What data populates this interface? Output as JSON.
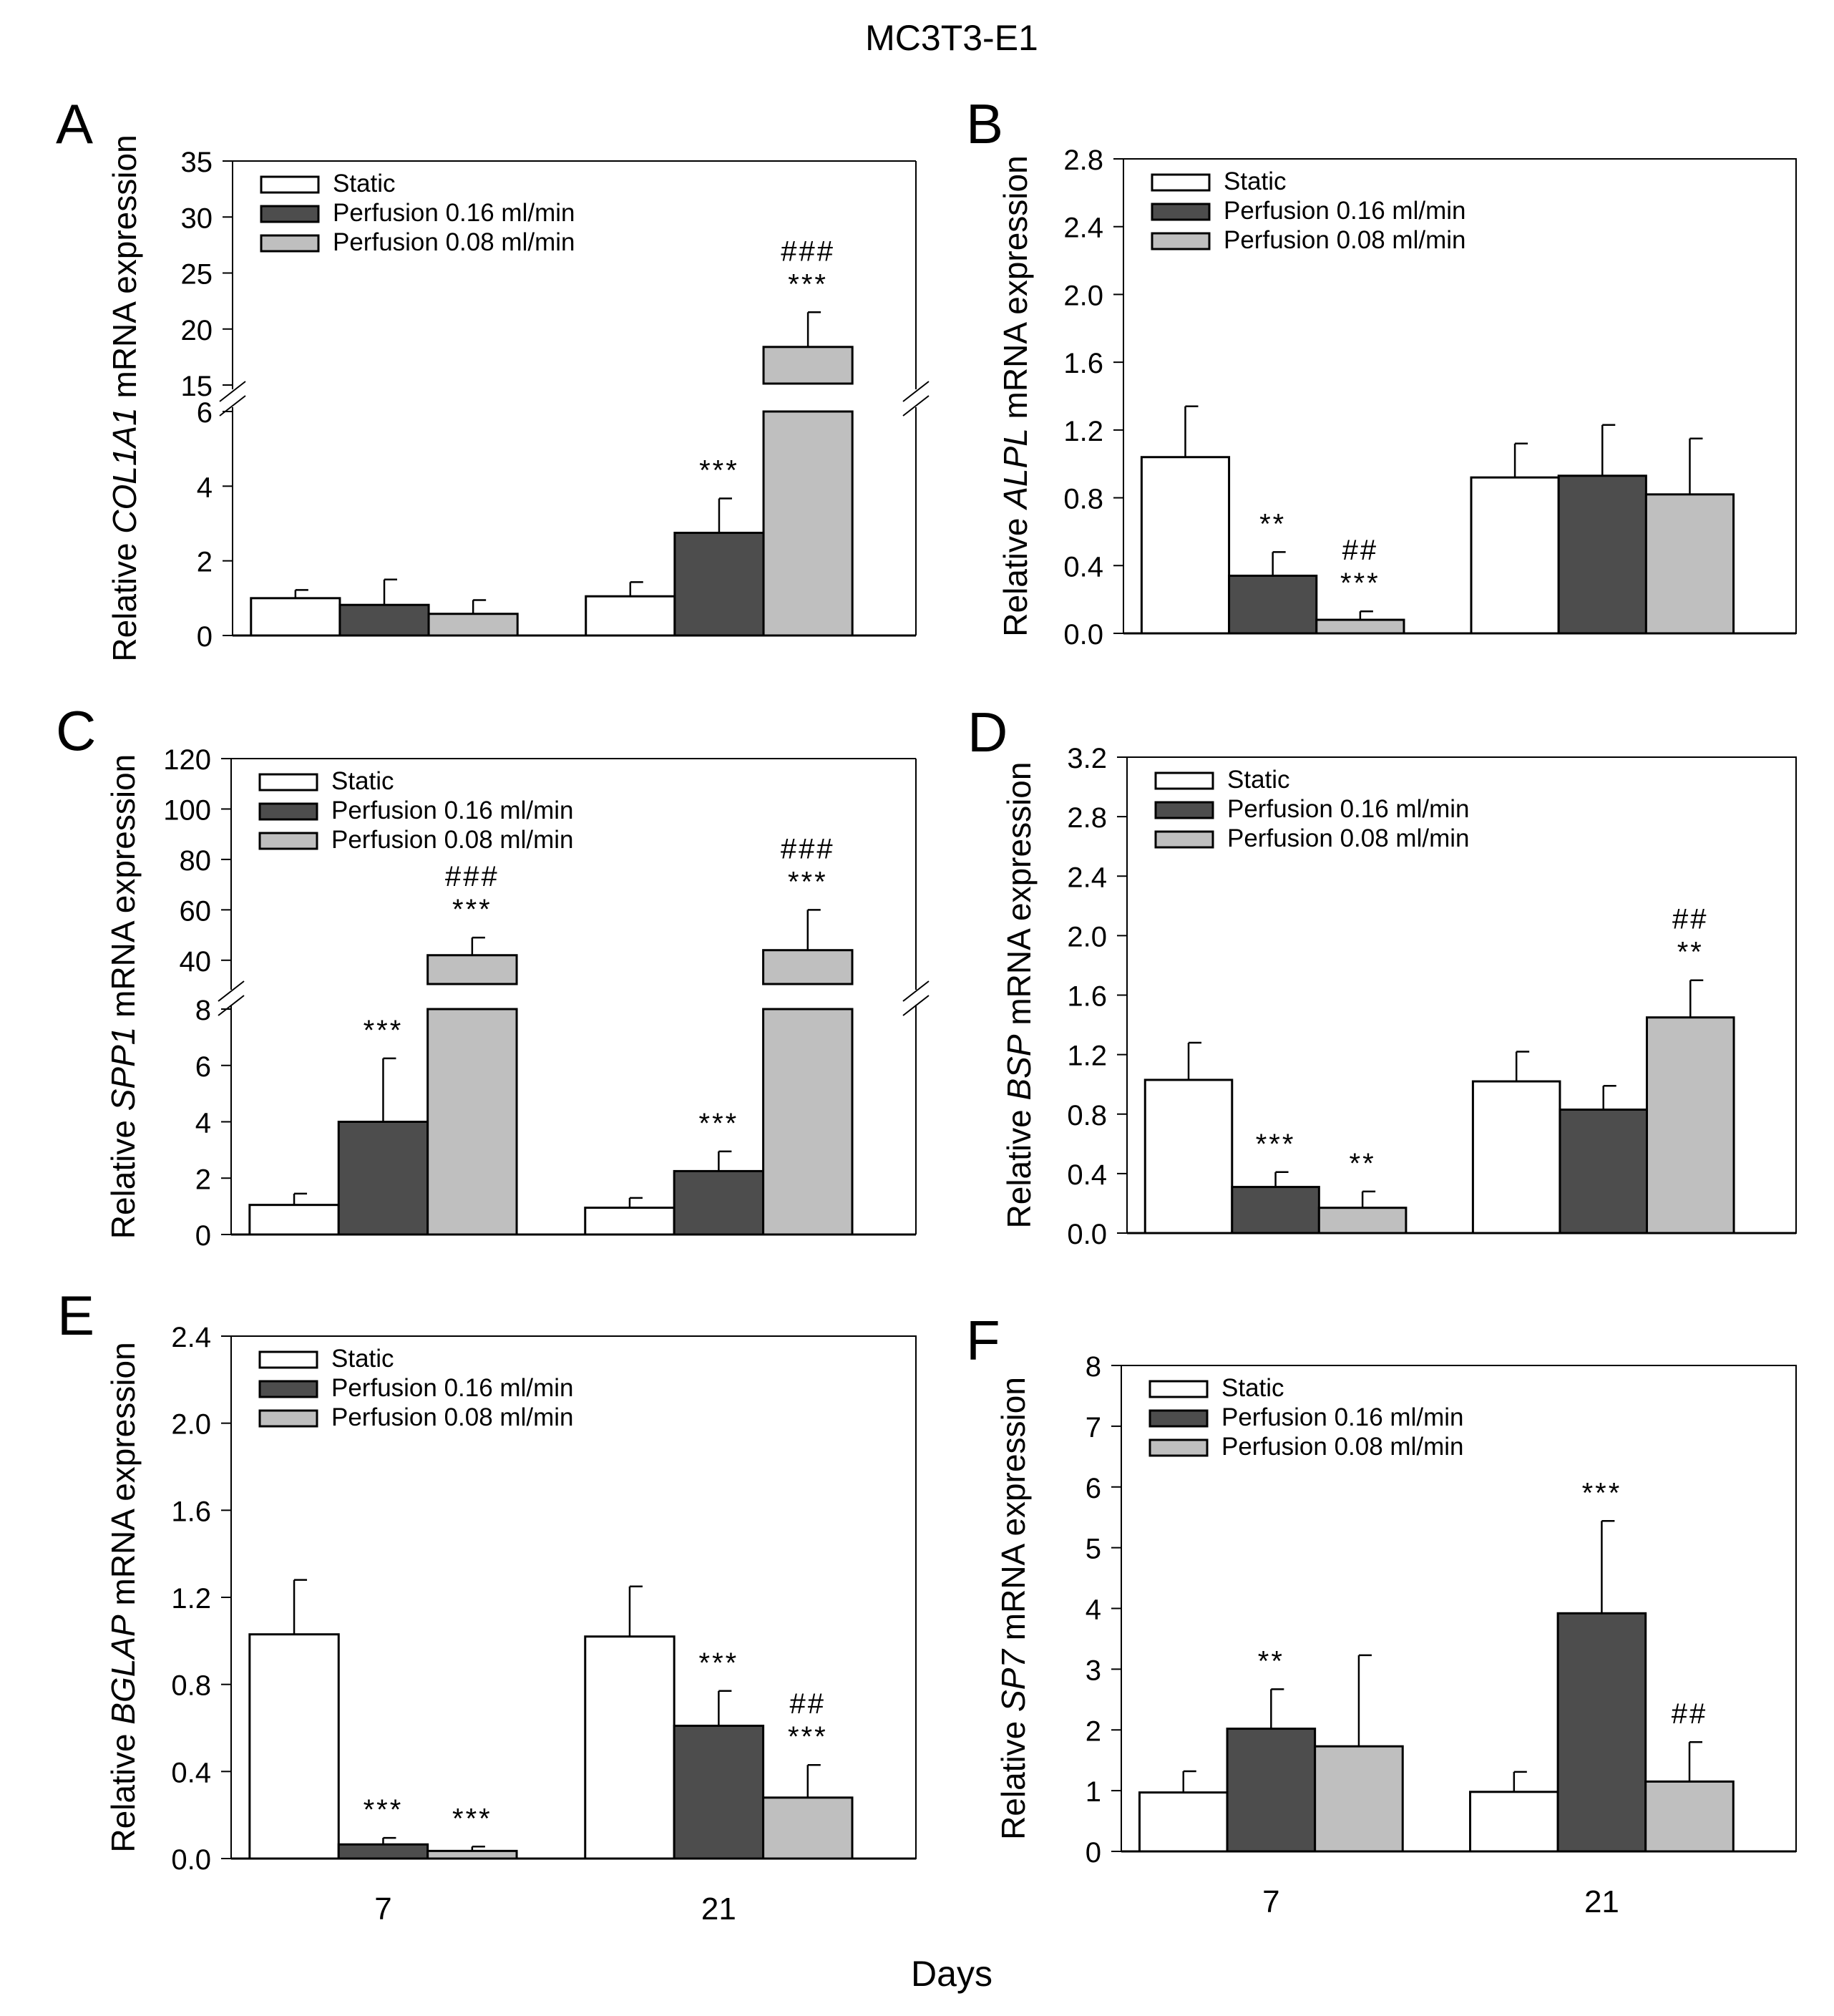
{
  "figure_title": "MC3T3-E1",
  "shared_xlabel": "Days",
  "legend": [
    "Static",
    "Perfusion 0.16 ml/min",
    "Perfusion 0.08 ml/min"
  ],
  "colors": {
    "static": "#ffffff",
    "perf016": "#4d4d4d",
    "perf008": "#bfbfbf",
    "axis": "#000000"
  },
  "chart_data": [
    {
      "panel": "A",
      "type": "bar",
      "gene": "COL1A1",
      "ylabel_prefix": "Relative ",
      "ylabel_suffix": " mRNA expression",
      "categories": [
        "7",
        "21"
      ],
      "show_xticks": false,
      "broken_axis": true,
      "lower": {
        "ylim": [
          0,
          6
        ],
        "ticks": [
          0,
          2,
          4,
          6
        ]
      },
      "upper": {
        "ylim": [
          15,
          35
        ],
        "ticks": [
          15,
          20,
          25,
          30,
          35
        ]
      },
      "series": [
        {
          "name": "Static",
          "values": [
            1.0,
            1.05
          ],
          "errors": [
            0.22,
            0.38
          ]
        },
        {
          "name": "Perfusion 0.16 ml/min",
          "values": [
            0.82,
            2.75
          ],
          "errors": [
            0.68,
            0.92
          ]
        },
        {
          "name": "Perfusion 0.08 ml/min",
          "values": [
            0.58,
            18.4
          ],
          "errors": [
            0.37,
            3.1
          ]
        }
      ],
      "annotations": [
        {
          "category": 1,
          "series": 1,
          "lines": [
            "***"
          ]
        },
        {
          "category": 1,
          "series": 2,
          "lines": [
            "###",
            "***"
          ]
        }
      ]
    },
    {
      "panel": "B",
      "type": "bar",
      "gene": "ALPL",
      "ylabel_prefix": "Relative ",
      "ylabel_suffix": " mRNA expression",
      "categories": [
        "7",
        "21"
      ],
      "show_xticks": false,
      "ylim": [
        0,
        2.8
      ],
      "ticks": [
        "0.0",
        "0.4",
        "0.8",
        "1.2",
        "1.6",
        "2.0",
        "2.4",
        "2.8"
      ],
      "series": [
        {
          "name": "Static",
          "values": [
            1.04,
            0.92
          ],
          "errors": [
            0.3,
            0.2
          ]
        },
        {
          "name": "Perfusion 0.16 ml/min",
          "values": [
            0.34,
            0.93
          ],
          "errors": [
            0.14,
            0.3
          ]
        },
        {
          "name": "Perfusion 0.08 ml/min",
          "values": [
            0.08,
            0.82
          ],
          "errors": [
            0.05,
            0.33
          ]
        }
      ],
      "annotations": [
        {
          "category": 0,
          "series": 1,
          "lines": [
            "**"
          ]
        },
        {
          "category": 0,
          "series": 2,
          "lines": [
            "##",
            "***"
          ]
        }
      ]
    },
    {
      "panel": "C",
      "type": "bar",
      "gene": "SPP1",
      "ylabel_prefix": "Relative ",
      "ylabel_suffix": " mRNA expression",
      "categories": [
        "7",
        "21"
      ],
      "show_xticks": false,
      "broken_axis": true,
      "lower": {
        "ylim": [
          0,
          8
        ],
        "ticks": [
          0,
          2,
          4,
          6,
          8
        ]
      },
      "upper": {
        "ylim": [
          30,
          120
        ],
        "ticks": [
          40,
          60,
          80,
          100,
          120
        ]
      },
      "series": [
        {
          "name": "Static",
          "values": [
            1.05,
            0.95
          ],
          "errors": [
            0.4,
            0.35
          ]
        },
        {
          "name": "Perfusion 0.16 ml/min",
          "values": [
            4.0,
            2.25
          ],
          "errors": [
            2.25,
            0.7
          ]
        },
        {
          "name": "Perfusion 0.08 ml/min",
          "values": [
            42,
            44
          ],
          "errors": [
            7,
            16
          ]
        }
      ],
      "annotations": [
        {
          "category": 0,
          "series": 1,
          "lines": [
            "***"
          ]
        },
        {
          "category": 0,
          "series": 2,
          "lines": [
            "###",
            "***"
          ]
        },
        {
          "category": 1,
          "series": 1,
          "lines": [
            "***"
          ]
        },
        {
          "category": 1,
          "series": 2,
          "lines": [
            "###",
            "***"
          ]
        }
      ]
    },
    {
      "panel": "D",
      "type": "bar",
      "gene": "BSP",
      "ylabel_prefix": "Relative ",
      "ylabel_suffix": " mRNA expression",
      "categories": [
        "7",
        "21"
      ],
      "show_xticks": false,
      "ylim": [
        0,
        3.2
      ],
      "ticks": [
        "0.0",
        "0.4",
        "0.8",
        "1.2",
        "1.6",
        "2.0",
        "2.4",
        "2.8",
        "3.2"
      ],
      "series": [
        {
          "name": "Static",
          "values": [
            1.03,
            1.02
          ],
          "errors": [
            0.25,
            0.2
          ]
        },
        {
          "name": "Perfusion 0.16 ml/min",
          "values": [
            0.31,
            0.83
          ],
          "errors": [
            0.1,
            0.16
          ]
        },
        {
          "name": "Perfusion 0.08 ml/min",
          "values": [
            0.17,
            1.45
          ],
          "errors": [
            0.11,
            0.25
          ]
        }
      ],
      "annotations": [
        {
          "category": 0,
          "series": 1,
          "lines": [
            "***"
          ]
        },
        {
          "category": 0,
          "series": 2,
          "lines": [
            "**"
          ]
        },
        {
          "category": 1,
          "series": 2,
          "lines": [
            "##",
            "**"
          ]
        }
      ]
    },
    {
      "panel": "E",
      "type": "bar",
      "gene": "BGLAP",
      "ylabel_prefix": "Relative ",
      "ylabel_suffix": " mRNA expression",
      "categories": [
        "7",
        "21"
      ],
      "show_xticks": true,
      "ylim": [
        0,
        2.4
      ],
      "ticks": [
        "0.0",
        "0.4",
        "0.8",
        "1.2",
        "1.6",
        "2.0",
        "2.4"
      ],
      "series": [
        {
          "name": "Static",
          "values": [
            1.03,
            1.02
          ],
          "errors": [
            0.25,
            0.23
          ]
        },
        {
          "name": "Perfusion 0.16 ml/min",
          "values": [
            0.065,
            0.61
          ],
          "errors": [
            0.03,
            0.16
          ]
        },
        {
          "name": "Perfusion 0.08 ml/min",
          "values": [
            0.035,
            0.28
          ],
          "errors": [
            0.02,
            0.15
          ]
        }
      ],
      "annotations": [
        {
          "category": 0,
          "series": 1,
          "lines": [
            "***"
          ]
        },
        {
          "category": 0,
          "series": 2,
          "lines": [
            "***"
          ]
        },
        {
          "category": 1,
          "series": 1,
          "lines": [
            "***"
          ]
        },
        {
          "category": 1,
          "series": 2,
          "lines": [
            "##",
            "***"
          ]
        }
      ]
    },
    {
      "panel": "F",
      "type": "bar",
      "gene": "SP7",
      "ylabel_prefix": "Relative ",
      "ylabel_suffix": " mRNA expression",
      "categories": [
        "7",
        "21"
      ],
      "show_xticks": true,
      "ylim": [
        0,
        8
      ],
      "ticks": [
        "0",
        "1",
        "2",
        "3",
        "4",
        "5",
        "6",
        "7",
        "8"
      ],
      "series": [
        {
          "name": "Static",
          "values": [
            0.97,
            0.98
          ],
          "errors": [
            0.35,
            0.33
          ]
        },
        {
          "name": "Perfusion 0.16 ml/min",
          "values": [
            2.02,
            3.92
          ],
          "errors": [
            0.65,
            1.52
          ]
        },
        {
          "name": "Perfusion 0.08 ml/min",
          "values": [
            1.73,
            1.15
          ],
          "errors": [
            1.5,
            0.65
          ]
        }
      ],
      "annotations": [
        {
          "category": 0,
          "series": 1,
          "lines": [
            "**"
          ]
        },
        {
          "category": 1,
          "series": 1,
          "lines": [
            "***"
          ]
        },
        {
          "category": 1,
          "series": 2,
          "lines": [
            "##"
          ]
        }
      ]
    }
  ]
}
